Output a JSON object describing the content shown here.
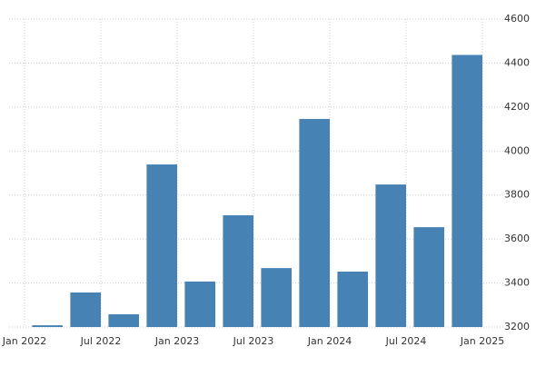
{
  "chart_data": {
    "type": "bar",
    "categories": [
      null,
      null,
      null,
      null,
      null,
      null,
      null,
      null,
      null,
      null,
      null,
      null
    ],
    "values": [
      3208,
      3357,
      3258,
      3939,
      3407,
      3708,
      3468,
      4146,
      3452,
      3848,
      3654,
      4437
    ],
    "color": "#4682b4",
    "xticks": [
      "Jan 2022",
      "Jul 2022",
      "Jan 2023",
      "Jul 2023",
      "Jan 2024",
      "Jul 2024",
      "Jan 2025"
    ],
    "ylim": [
      3200,
      4600
    ],
    "yticks": [
      3200,
      3400,
      3600,
      3800,
      4000,
      4200,
      4400,
      4600
    ],
    "grid": true
  }
}
